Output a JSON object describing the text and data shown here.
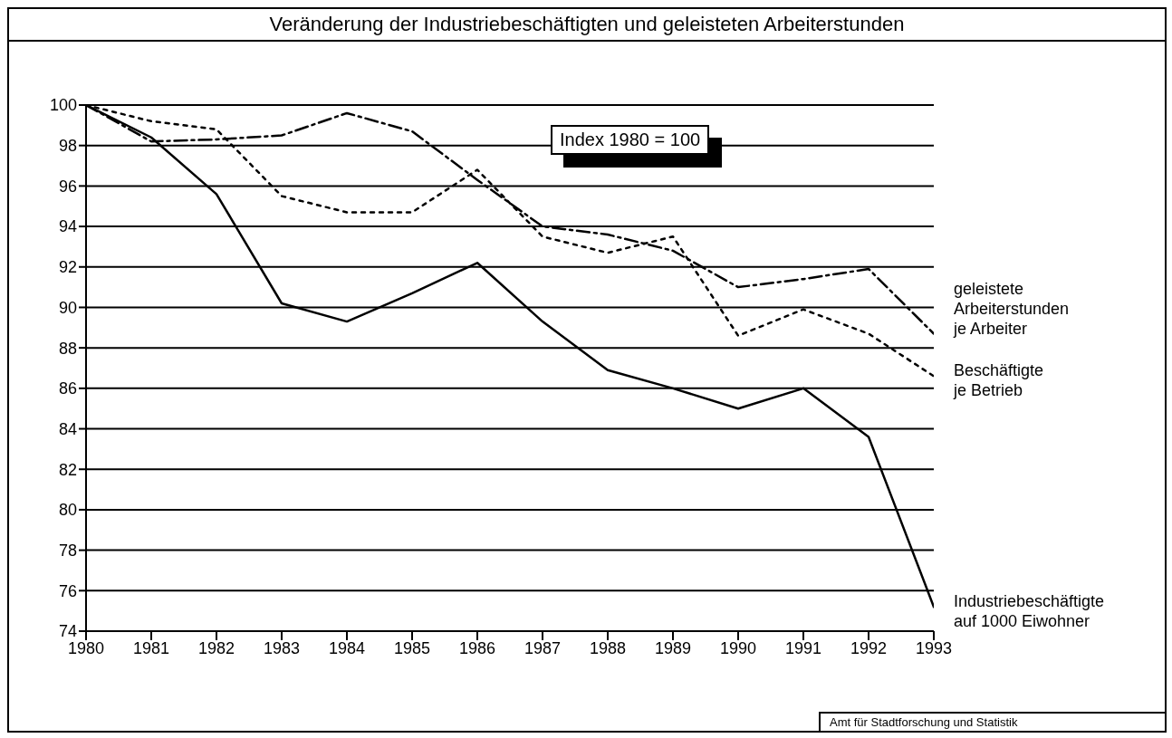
{
  "chart_data": {
    "type": "line",
    "title": "Veränderung der Industriebeschäftigten und geleisteten Arbeiterstunden",
    "x": [
      1980,
      1981,
      1982,
      1983,
      1984,
      1985,
      1986,
      1987,
      1988,
      1989,
      1990,
      1991,
      1992,
      1993
    ],
    "series": [
      {
        "name": "geleistete\nArbeiterstunden\nje Arbeiter",
        "color": "#000000",
        "line_style": "dashed",
        "values": [
          100,
          98.2,
          98.3,
          98.5,
          99.6,
          98.7,
          96.3,
          94.0,
          93.6,
          92.8,
          91.0,
          91.4,
          91.9,
          88.7
        ]
      },
      {
        "name": "Beschäftigte\nje Betrieb",
        "color": "#000000",
        "line_style": "dotted",
        "values": [
          100,
          99.2,
          98.8,
          95.5,
          94.7,
          94.7,
          96.8,
          93.5,
          92.7,
          93.5,
          88.6,
          89.9,
          88.7,
          86.6
        ]
      },
      {
        "name": "Industriebeschäftigte\nauf 1000 Eiwohner",
        "color": "#000000",
        "line_style": "solid",
        "values": [
          100,
          98.4,
          95.6,
          90.2,
          89.3,
          90.7,
          92.2,
          89.3,
          86.9,
          86.0,
          85.0,
          86.0,
          83.6,
          75.2
        ]
      }
    ],
    "xlim": [
      1980,
      1993
    ],
    "xticks": [
      1980,
      1981,
      1982,
      1983,
      1984,
      1985,
      1986,
      1987,
      1988,
      1989,
      1990,
      1991,
      1992,
      1993
    ],
    "ylim": [
      74,
      100
    ],
    "yticks": [
      74,
      76,
      78,
      80,
      82,
      84,
      86,
      88,
      90,
      92,
      94,
      96,
      98,
      100
    ],
    "grid": "y",
    "marker": "none",
    "annotations": [
      "Index 1980 = 100",
      "Amt für Stadtforschung und Statistik"
    ]
  }
}
